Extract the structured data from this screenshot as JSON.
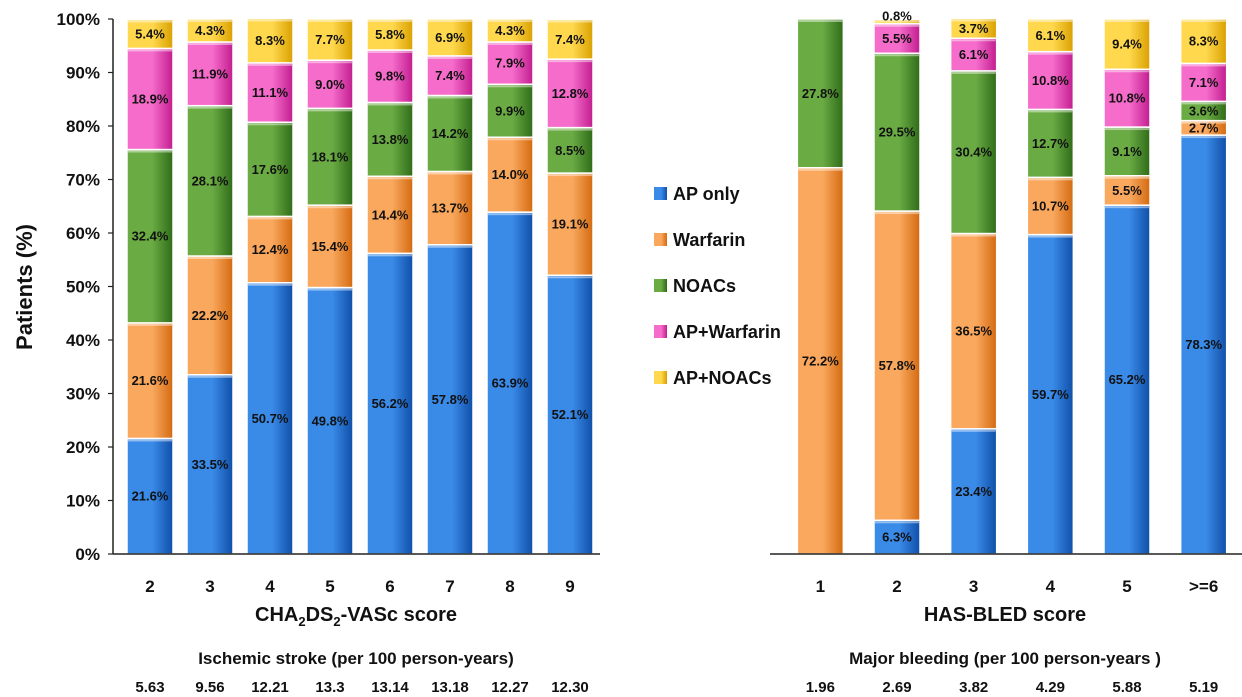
{
  "chart_data": [
    {
      "type": "bar",
      "stacked": true,
      "title": "",
      "ylabel": "Patients (%)",
      "xlabel_main": "CHA",
      "xlabel_sub1": "2",
      "xlabel_mid": "DS",
      "xlabel_sub2": "2",
      "xlabel_tail": "-VASc score",
      "ylim": [
        0,
        100
      ],
      "yticks": [
        "0%",
        "10%",
        "20%",
        "30%",
        "40%",
        "50%",
        "60%",
        "70%",
        "80%",
        "90%",
        "100%"
      ],
      "categories": [
        "2",
        "3",
        "4",
        "5",
        "6",
        "7",
        "8",
        "9"
      ],
      "series": [
        {
          "name": "AP only",
          "values": [
            21.6,
            33.5,
            50.7,
            49.8,
            56.2,
            57.8,
            63.9,
            52.1
          ],
          "labels": [
            "21.6%",
            "33.5%",
            "50.7%",
            "49.8%",
            "56.2%",
            "57.8%",
            "63.9%",
            "52.1%"
          ]
        },
        {
          "name": "Warfarin",
          "values": [
            21.6,
            22.2,
            12.4,
            15.4,
            14.4,
            13.7,
            14.0,
            19.1
          ],
          "labels": [
            "21.6%",
            "22.2%",
            "12.4%",
            "15.4%",
            "14.4%",
            "13.7%",
            "14.0%",
            "19.1%"
          ]
        },
        {
          "name": "NOACs",
          "values": [
            32.4,
            28.1,
            17.6,
            18.1,
            13.8,
            14.2,
            9.9,
            8.5
          ],
          "labels": [
            "32.4%",
            "28.1%",
            "17.6%",
            "18.1%",
            "13.8%",
            "14.2%",
            "9.9%",
            "8.5%"
          ]
        },
        {
          "name": "AP+Warfarin",
          "values": [
            18.9,
            11.9,
            11.1,
            9.0,
            9.8,
            7.4,
            7.9,
            12.8
          ],
          "labels": [
            "18.9%",
            "11.9%",
            "11.1%",
            "9.0%",
            "9.8%",
            "7.4%",
            "7.9%",
            "12.8%"
          ]
        },
        {
          "name": "AP+NOACs",
          "values": [
            5.4,
            4.3,
            8.3,
            7.7,
            5.8,
            6.9,
            4.3,
            7.4
          ],
          "labels": [
            "5.4%",
            "4.3%",
            "8.3%",
            "7.7%",
            "5.8%",
            "6.9%",
            "4.3%",
            "7.4%"
          ]
        }
      ],
      "rates_title": "Ischemic stroke (per 100 person-years)",
      "rates": [
        "5.63",
        "9.56",
        "12.21",
        "13.3",
        "13.14",
        "13.18",
        "12.27",
        "12.30"
      ]
    },
    {
      "type": "bar",
      "stacked": true,
      "title": "",
      "xlabel": "HAS-BLED score",
      "ylim": [
        0,
        100
      ],
      "categories": [
        "1",
        "2",
        "3",
        "4",
        "5",
        ">=6"
      ],
      "series": [
        {
          "name": "AP only",
          "values": [
            0,
            6.3,
            23.4,
            59.7,
            65.2,
            78.3
          ],
          "labels": [
            "",
            "6.3%",
            "23.4%",
            "59.7%",
            "65.2%",
            "78.3%"
          ]
        },
        {
          "name": "Warfarin",
          "values": [
            72.2,
            57.8,
            36.5,
            10.7,
            5.5,
            2.7
          ],
          "labels": [
            "72.2%",
            "57.8%",
            "36.5%",
            "10.7%",
            "5.5%",
            "2.7%"
          ]
        },
        {
          "name": "NOACs",
          "values": [
            27.8,
            29.5,
            30.4,
            12.7,
            9.1,
            3.6
          ],
          "labels": [
            "27.8%",
            "29.5%",
            "30.4%",
            "12.7%",
            "9.1%",
            "3.6%"
          ]
        },
        {
          "name": "AP+Warfarin",
          "values": [
            0,
            5.5,
            6.1,
            10.8,
            10.8,
            7.1
          ],
          "labels": [
            "",
            "5.5%",
            "6.1%",
            "10.8%",
            "10.8%",
            "7.1%"
          ]
        },
        {
          "name": "AP+NOACs",
          "values": [
            0,
            0.8,
            3.7,
            6.1,
            9.4,
            8.3
          ],
          "labels": [
            "",
            "0.8%",
            "3.7%",
            "6.1%",
            "9.4%",
            "8.3%"
          ]
        }
      ],
      "rates_title": "Major bleeding (per 100 person-years )",
      "rates": [
        "1.96",
        "2.69",
        "3.82",
        "4.29",
        "5.88",
        "5.19"
      ]
    }
  ],
  "legend": [
    "AP only",
    "Warfarin",
    "NOACs",
    "AP+Warfarin",
    "AP+NOACs"
  ],
  "colors": {
    "AP only": "#1f6fd1",
    "Warfarin": "#f08a30",
    "NOACs": "#4e8a2e",
    "AP+Warfarin": "#e63bb0",
    "AP+NOACs": "#f7c21a"
  },
  "gradients": {
    "AP only": [
      "#3a8ae8",
      "#0f4fa8"
    ],
    "Warfarin": [
      "#f9a85e",
      "#d46a10"
    ],
    "NOACs": [
      "#6aab44",
      "#2f6b18"
    ],
    "AP+Warfarin": [
      "#f56ccb",
      "#c21d8f"
    ],
    "AP+NOACs": [
      "#ffd84d",
      "#d9a000"
    ]
  }
}
